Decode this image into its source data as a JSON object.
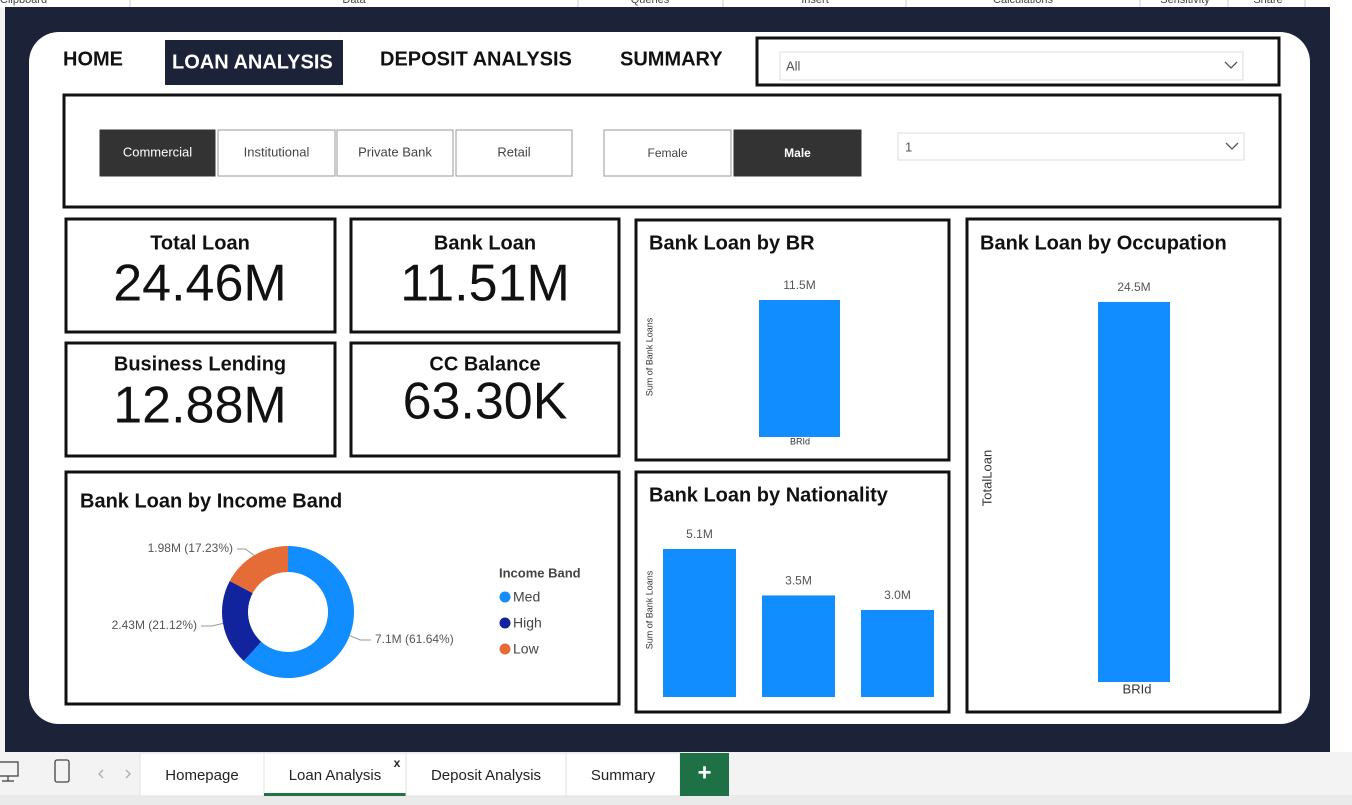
{
  "ribbon": [
    "Clipboard",
    "Data",
    "Queries",
    "Insert",
    "Calculations",
    "Sensitivity",
    "Share"
  ],
  "nav": {
    "items": [
      "HOME",
      "LOAN ANALYSIS",
      "DEPOSIT ANALYSIS",
      "SUMMARY"
    ],
    "selected": 1,
    "dropdown": "All"
  },
  "slicers": {
    "segments": [
      "Commercial",
      "Institutional",
      "Private Bank",
      "Retail"
    ],
    "segment_selected": 0,
    "genders": [
      "Female",
      "Male"
    ],
    "gender_selected": 1,
    "dropdown": "1"
  },
  "cards": [
    {
      "title": "Total Loan",
      "value": "24.46M"
    },
    {
      "title": "Bank Loan",
      "value": "11.51M"
    },
    {
      "title": "Business Lending",
      "value": "12.88M"
    },
    {
      "title": "CC Balance",
      "value": "63.30K"
    }
  ],
  "chart_data": [
    {
      "type": "pie",
      "title": "Bank Loan by Income Band",
      "legend_title": "Income Band",
      "donut": true,
      "categories": [
        "Med",
        "High",
        "Low"
      ],
      "values": [
        7.1,
        2.43,
        1.98
      ],
      "value_labels": [
        "7.1M (61.64%)",
        "2.43M (21.12%)",
        "1.98M (17.23%)"
      ],
      "colors": [
        "#118dff",
        "#12239e",
        "#e66c37"
      ]
    },
    {
      "type": "bar",
      "title": "Bank Loan by BR",
      "y_label": "Sum of Bank Loans",
      "x_label": "BRId",
      "categories": [
        null
      ],
      "values": [
        11.5
      ],
      "value_labels": [
        "11.5M"
      ],
      "color": "#118dff"
    },
    {
      "type": "bar",
      "title": "Bank Loan by Nationality",
      "y_label": "Sum of Bank Loans",
      "categories": [
        null,
        null,
        null
      ],
      "values": [
        5.1,
        3.5,
        3.0
      ],
      "value_labels": [
        "5.1M",
        "3.5M",
        "3.0M"
      ],
      "color": "#118dff"
    },
    {
      "type": "bar",
      "title": "Bank Loan by Occupation",
      "y_label": "TotalLoan",
      "x_label": "BRId",
      "categories": [
        null
      ],
      "values": [
        24.5
      ],
      "value_labels": [
        "24.5M"
      ],
      "color": "#118dff"
    }
  ],
  "tabs": {
    "items": [
      "Homepage",
      "Loan Analysis",
      "Deposit Analysis",
      "Summary"
    ],
    "active": 1,
    "close_label": "x",
    "add_label": "+"
  }
}
